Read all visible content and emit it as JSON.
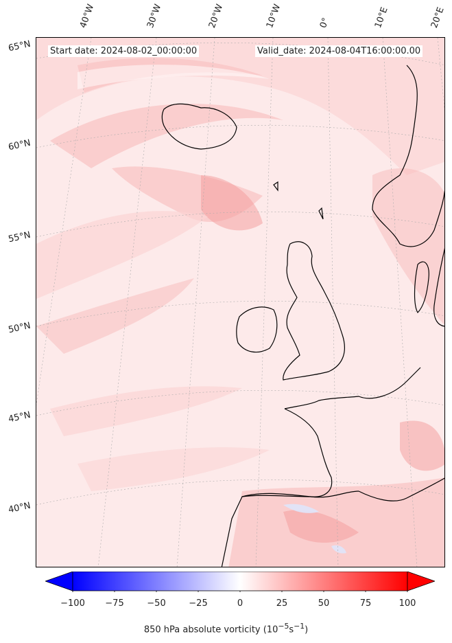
{
  "map": {
    "start_date": "Start date: 2024-08-02_00:00:00",
    "valid_date": "Valid_date: 2024-08-04T16:00:00.00",
    "longitude_labels": [
      "40°W",
      "30°W",
      "20°W",
      "10°W",
      "0°",
      "10°E",
      "20°E"
    ],
    "latitude_labels": [
      "65°N",
      "60°N",
      "55°N",
      "50°N",
      "45°N",
      "40°N"
    ],
    "gridlines": true,
    "coastlines": true,
    "field_colors": {
      "background": "#fdeaea",
      "light": "#fbd4d4",
      "medium": "#f8baba",
      "strong": "#f39a9a",
      "negative": "#dfe6fb"
    }
  },
  "colorbar": {
    "label_text": "850 hPa absolute vorticity (10",
    "label_exp": "−5",
    "label_unit": "s",
    "label_exp2": "−1",
    "label_close": ")",
    "ticks": [
      "−100",
      "−75",
      "−50",
      "−25",
      "0",
      "25",
      "50",
      "75",
      "100"
    ],
    "range": [
      -100,
      100
    ],
    "colormap": "bwr",
    "extend": "both",
    "low_color": "#0000ff",
    "mid_color": "#ffffff",
    "high_color": "#ff0000"
  }
}
